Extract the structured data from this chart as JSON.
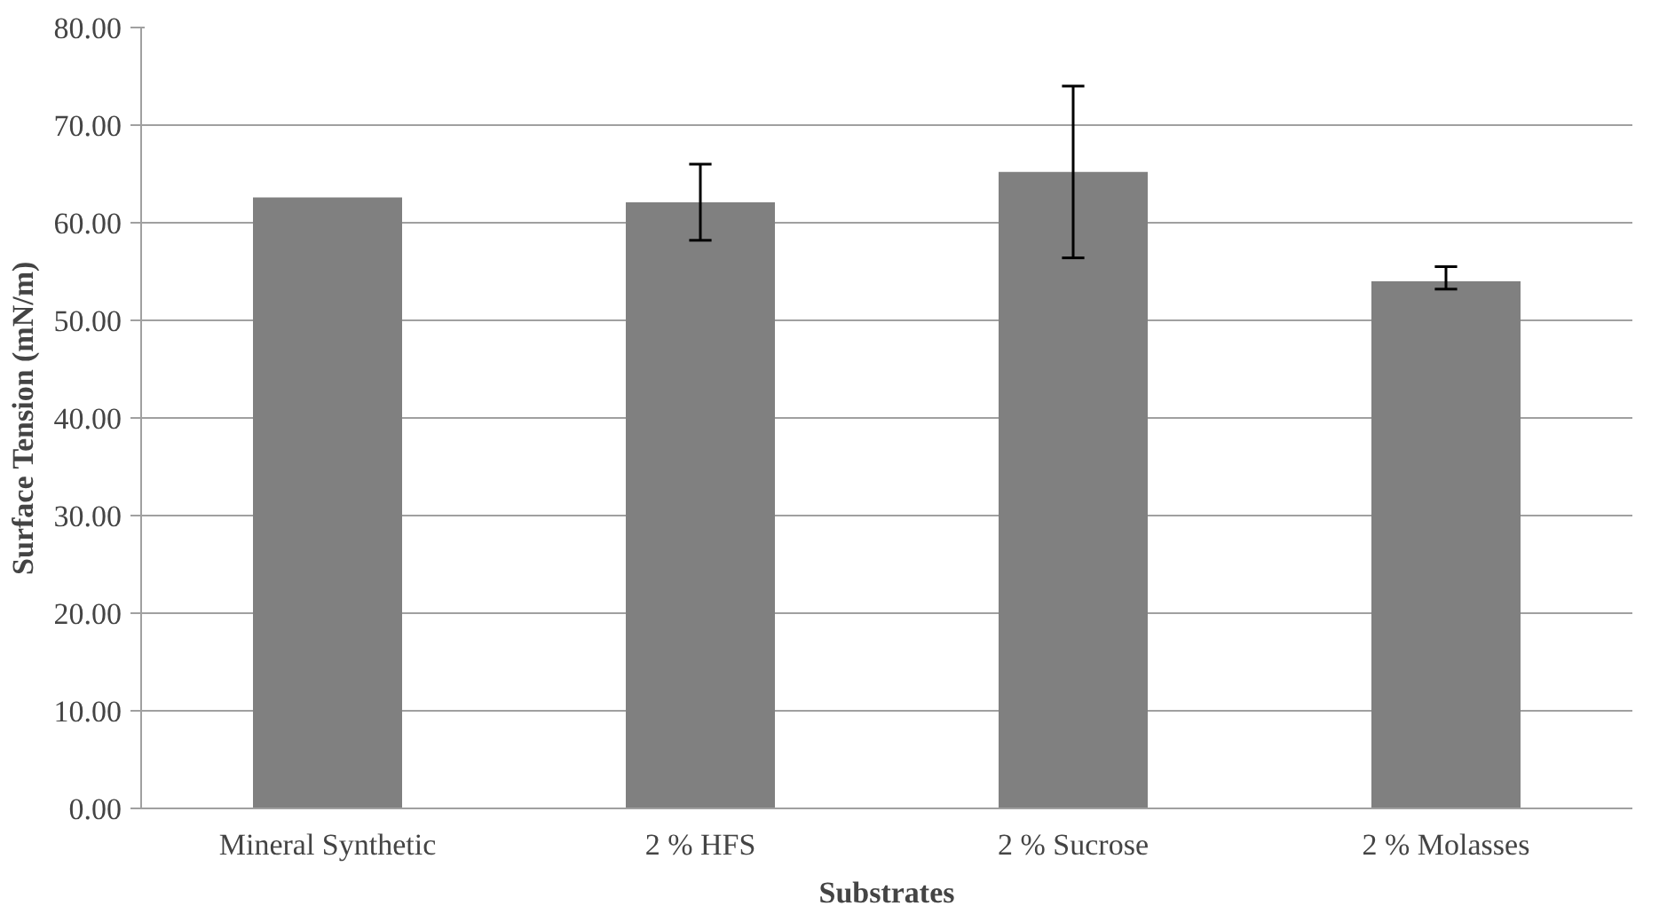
{
  "chart_data": {
    "type": "bar",
    "xlabel": "Substrates",
    "ylabel": "Surface Tension (mN/m)",
    "categories": [
      "Mineral Synthetic",
      "2 % HFS",
      "2 % Sucrose",
      "2 % Molasses"
    ],
    "values": [
      62.6,
      62.1,
      65.2,
      54.0
    ],
    "errors": [
      null,
      [
        58.2,
        66.0
      ],
      [
        56.4,
        74.0
      ],
      [
        53.2,
        55.5
      ]
    ],
    "color": "#808080",
    "ylim": [
      0,
      80
    ],
    "yticks": [
      {
        "value": 0,
        "label": "0.00"
      },
      {
        "value": 10,
        "label": "10.00"
      },
      {
        "value": 20,
        "label": "20.00"
      },
      {
        "value": 30,
        "label": "30.00"
      },
      {
        "value": 40,
        "label": "40.00"
      },
      {
        "value": 50,
        "label": "50.00"
      },
      {
        "value": 60,
        "label": "60.00"
      },
      {
        "value": 70,
        "label": "70.00"
      },
      {
        "value": 80,
        "label": "80.00"
      }
    ],
    "grid": "y"
  }
}
